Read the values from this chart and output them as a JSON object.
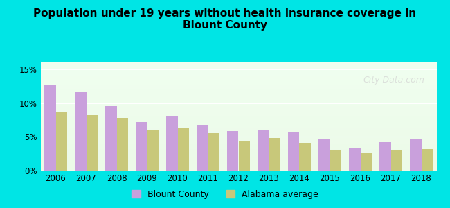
{
  "title": "Population under 19 years without health insurance coverage in\nBlount County",
  "years": [
    2006,
    2007,
    2008,
    2009,
    2010,
    2011,
    2012,
    2013,
    2014,
    2015,
    2016,
    2017,
    2018
  ],
  "blount_county": [
    12.6,
    11.7,
    9.5,
    7.2,
    8.1,
    6.8,
    5.8,
    6.0,
    5.6,
    4.7,
    3.4,
    4.2,
    4.6
  ],
  "alabama_avg": [
    8.7,
    8.2,
    7.8,
    6.1,
    6.3,
    5.5,
    4.3,
    4.8,
    4.1,
    3.1,
    2.7,
    3.0,
    3.2
  ],
  "blount_color": "#c9a0dc",
  "alabama_color": "#c8c87a",
  "background_outer": "#00e5e5",
  "background_inner_top": "#f0fff0",
  "background_inner_bottom": "#e8f5e0",
  "ylim": [
    0,
    16
  ],
  "yticks": [
    0,
    5,
    10,
    15
  ],
  "ytick_labels": [
    "0%",
    "5%",
    "10%",
    "15%"
  ],
  "watermark": "City-Data.com",
  "legend_blount": "Blount County",
  "legend_alabama": "Alabama average"
}
